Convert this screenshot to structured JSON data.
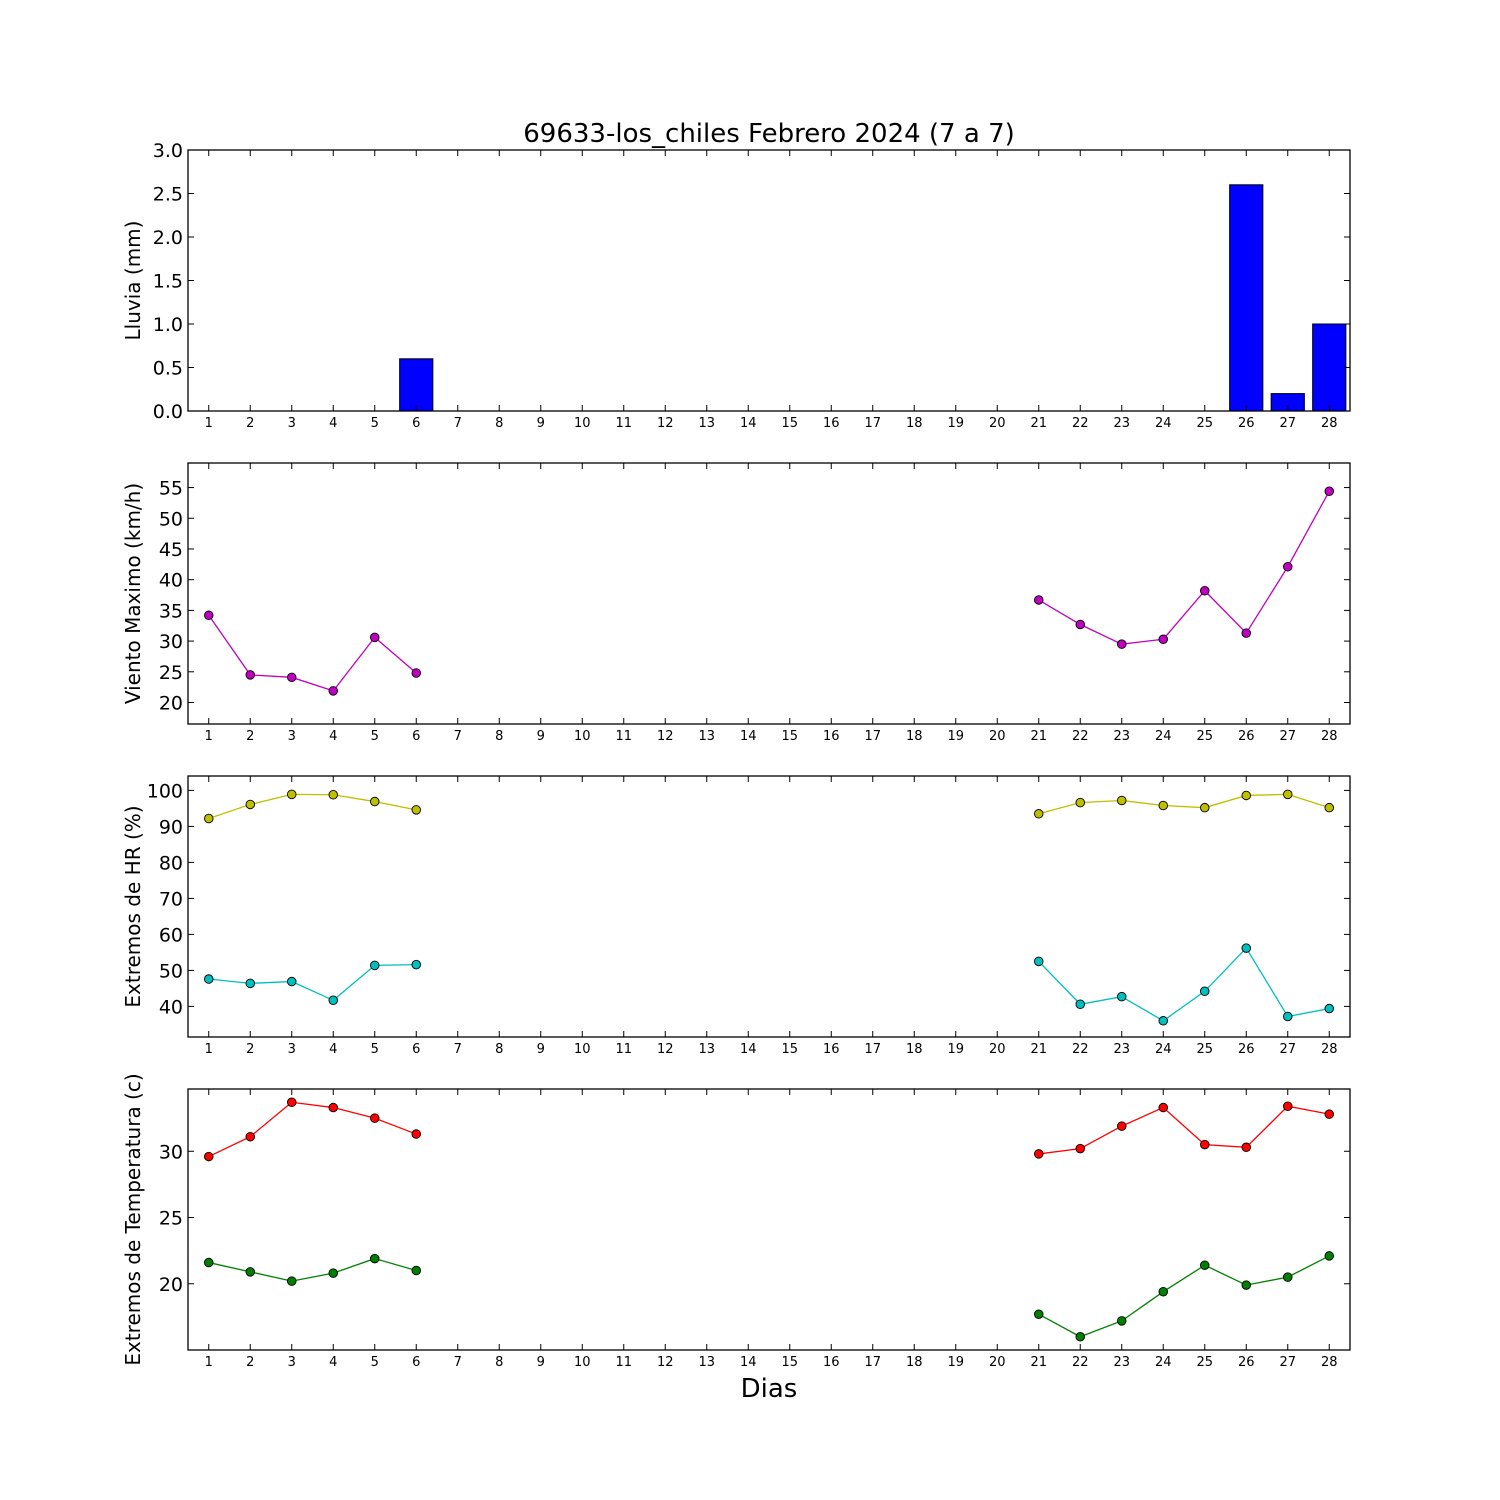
{
  "title": "69633-los_chiles Febrero 2024  (7 a 7)",
  "xlabel": "Dias",
  "chart_data": [
    {
      "type": "bar",
      "ylabel": "Lluvia (mm)",
      "ylim": [
        0,
        3.0
      ],
      "yticks": [
        "0.0",
        "0.5",
        "1.0",
        "1.5",
        "2.0",
        "2.5",
        "3.0"
      ],
      "ytick_values": [
        0,
        0.5,
        1.0,
        1.5,
        2.0,
        2.5,
        3.0
      ],
      "x": [
        1,
        2,
        3,
        4,
        5,
        6,
        7,
        8,
        9,
        10,
        11,
        12,
        13,
        14,
        15,
        16,
        17,
        18,
        19,
        20,
        21,
        22,
        23,
        24,
        25,
        26,
        27,
        28
      ],
      "series": [
        {
          "color": "#0000ff",
          "values": [
            0,
            0,
            0,
            0,
            0,
            0.6,
            0,
            0,
            0,
            0,
            0,
            0,
            0,
            0,
            0,
            0,
            0,
            0,
            0,
            0,
            0,
            0,
            0,
            0,
            0,
            2.6,
            0.2,
            1.0
          ]
        }
      ]
    },
    {
      "type": "line",
      "ylabel": "Viento Maximo (km/h)",
      "ylim": [
        16.5,
        59.0
      ],
      "yticks": [
        "20",
        "25",
        "30",
        "35",
        "40",
        "45",
        "50",
        "55"
      ],
      "ytick_values": [
        20,
        25,
        30,
        35,
        40,
        45,
        50,
        55
      ],
      "x": [
        1,
        2,
        3,
        4,
        5,
        6,
        7,
        8,
        9,
        10,
        11,
        12,
        13,
        14,
        15,
        16,
        17,
        18,
        19,
        20,
        21,
        22,
        23,
        24,
        25,
        26,
        27,
        28
      ],
      "series": [
        {
          "color": "#bf00bf",
          "values": [
            34.2,
            24.5,
            24.1,
            21.9,
            30.6,
            24.8,
            null,
            null,
            null,
            null,
            null,
            null,
            null,
            null,
            null,
            null,
            null,
            null,
            null,
            null,
            36.7,
            32.7,
            29.5,
            30.3,
            38.2,
            31.3,
            42.1,
            54.4
          ]
        }
      ]
    },
    {
      "type": "line",
      "ylabel": "Extremos de HR (%)",
      "ylim": [
        31.5,
        104.0
      ],
      "yticks": [
        "40",
        "50",
        "60",
        "70",
        "80",
        "90",
        "100"
      ],
      "ytick_values": [
        40,
        50,
        60,
        70,
        80,
        90,
        100
      ],
      "x": [
        1,
        2,
        3,
        4,
        5,
        6,
        7,
        8,
        9,
        10,
        11,
        12,
        13,
        14,
        15,
        16,
        17,
        18,
        19,
        20,
        21,
        22,
        23,
        24,
        25,
        26,
        27,
        28
      ],
      "series": [
        {
          "color": "#bfbf00",
          "values": [
            92.2,
            96.1,
            98.9,
            98.8,
            96.9,
            94.6,
            null,
            null,
            null,
            null,
            null,
            null,
            null,
            null,
            null,
            null,
            null,
            null,
            null,
            null,
            93.5,
            96.6,
            97.2,
            95.8,
            95.2,
            98.6,
            98.9,
            95.2
          ]
        },
        {
          "color": "#00bfbf",
          "values": [
            47.6,
            46.4,
            46.9,
            41.7,
            51.4,
            51.6,
            null,
            null,
            null,
            null,
            null,
            null,
            null,
            null,
            null,
            null,
            null,
            null,
            null,
            null,
            52.5,
            40.6,
            42.7,
            36.0,
            44.2,
            56.2,
            37.2,
            39.4
          ]
        }
      ]
    },
    {
      "type": "line",
      "ylabel": "Extremos de Temperatura (c)",
      "ylim": [
        15.0,
        34.7
      ],
      "yticks": [
        "20",
        "25",
        "30"
      ],
      "ytick_values": [
        20,
        25,
        30
      ],
      "x": [
        1,
        2,
        3,
        4,
        5,
        6,
        7,
        8,
        9,
        10,
        11,
        12,
        13,
        14,
        15,
        16,
        17,
        18,
        19,
        20,
        21,
        22,
        23,
        24,
        25,
        26,
        27,
        28
      ],
      "series": [
        {
          "color": "#ff0000",
          "values": [
            29.6,
            31.1,
            33.7,
            33.3,
            32.5,
            31.3,
            null,
            null,
            null,
            null,
            null,
            null,
            null,
            null,
            null,
            null,
            null,
            null,
            null,
            null,
            29.8,
            30.2,
            31.9,
            33.3,
            30.5,
            30.3,
            33.4,
            32.8
          ]
        },
        {
          "color": "#008000",
          "values": [
            21.6,
            20.9,
            20.2,
            20.8,
            21.9,
            21.0,
            null,
            null,
            null,
            null,
            null,
            null,
            null,
            null,
            null,
            null,
            null,
            null,
            null,
            null,
            17.7,
            16.0,
            17.2,
            19.4,
            21.4,
            19.9,
            20.5,
            22.1
          ]
        }
      ]
    }
  ]
}
